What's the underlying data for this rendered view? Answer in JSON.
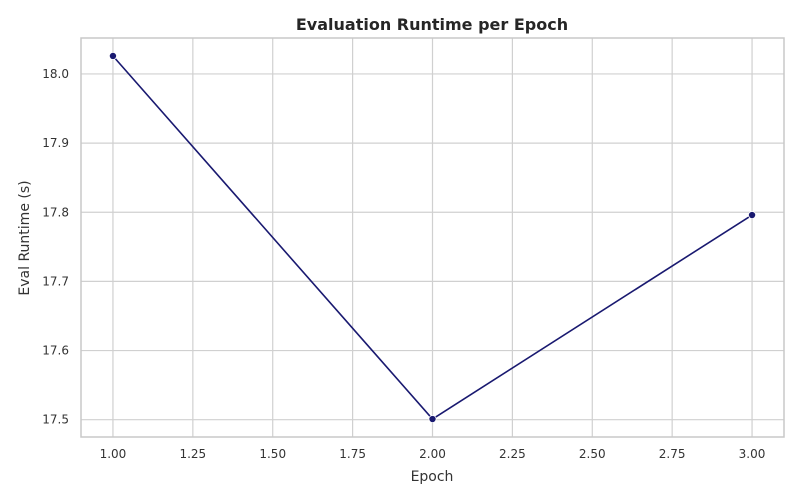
{
  "chart_data": {
    "type": "line",
    "title": "Evaluation Runtime per Epoch",
    "xlabel": "Epoch",
    "ylabel": "Eval Runtime (s)",
    "x": [
      1.0,
      2.0,
      3.0
    ],
    "series": [
      {
        "values": [
          18.026,
          17.501,
          17.796
        ],
        "color": "#191970"
      }
    ],
    "xlim": [
      0.9,
      3.1
    ],
    "ylim": [
      17.475,
      18.052
    ],
    "xticks": [
      1.0,
      1.25,
      1.5,
      1.75,
      2.0,
      2.25,
      2.5,
      2.75,
      3.0
    ],
    "xtick_labels": [
      "1.00",
      "1.25",
      "1.50",
      "1.75",
      "2.00",
      "2.25",
      "2.50",
      "2.75",
      "3.00"
    ],
    "yticks": [
      17.5,
      17.6,
      17.7,
      17.8,
      17.9,
      18.0
    ],
    "ytick_labels": [
      "17.5",
      "17.6",
      "17.7",
      "17.8",
      "17.9",
      "18.0"
    ],
    "grid": true,
    "markers": true
  }
}
